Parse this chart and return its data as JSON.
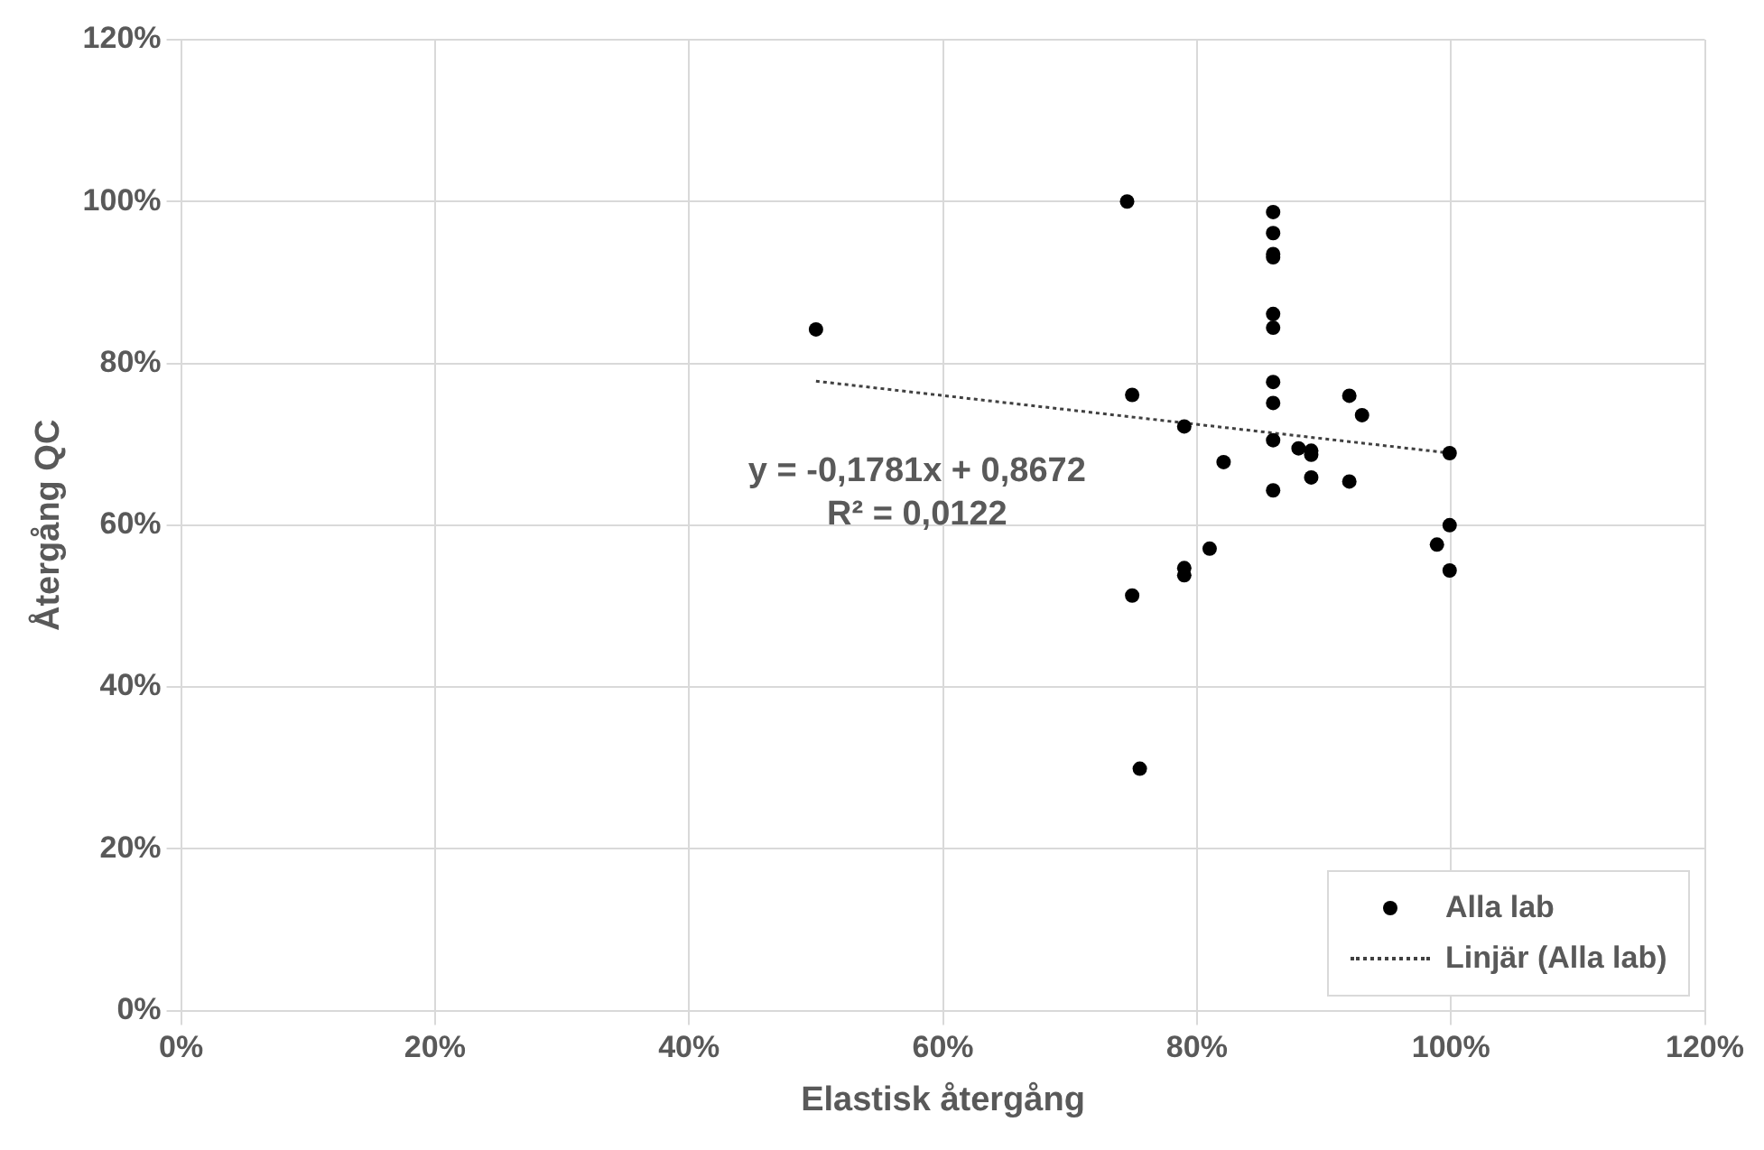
{
  "chart_data": {
    "type": "scatter",
    "xlabel": "Elastisk återgång",
    "ylabel": "Återgång QC",
    "xlim": [
      0,
      120
    ],
    "ylim": [
      0,
      120
    ],
    "xticks": [
      {
        "value": 0,
        "label": "0%"
      },
      {
        "value": 20,
        "label": "20%"
      },
      {
        "value": 40,
        "label": "40%"
      },
      {
        "value": 60,
        "label": "60%"
      },
      {
        "value": 80,
        "label": "80%"
      },
      {
        "value": 100,
        "label": "100%"
      },
      {
        "value": 120,
        "label": "120%"
      }
    ],
    "yticks": [
      {
        "value": 0,
        "label": "0%"
      },
      {
        "value": 20,
        "label": "20%"
      },
      {
        "value": 40,
        "label": "40%"
      },
      {
        "value": 60,
        "label": "60%"
      },
      {
        "value": 80,
        "label": "80%"
      },
      {
        "value": 100,
        "label": "100%"
      },
      {
        "value": 120,
        "label": "120%"
      }
    ],
    "grid": true,
    "legend": "bottom right",
    "marker": "circle",
    "series": [
      {
        "name": "Alla lab",
        "type": "scatter",
        "color": "#000000",
        "x": [
          50,
          74.5,
          74.9,
          74.9,
          75.5,
          79,
          79,
          79,
          81,
          82.1,
          86,
          86,
          86,
          86,
          86,
          86,
          86,
          86,
          86,
          86,
          88,
          89,
          89,
          89,
          92,
          93,
          92,
          99.9,
          99.9,
          98.9,
          99.9
        ],
        "values": [
          84.2,
          100,
          76.1,
          51.3,
          29.9,
          72.2,
          54.7,
          53.8,
          57.1,
          67.8,
          98.7,
          96.1,
          93.5,
          93.1,
          86.1,
          84.4,
          77.7,
          75.1,
          70.5,
          64.3,
          69.5,
          69.2,
          68.7,
          65.9,
          76,
          73.6,
          65.4,
          68.9,
          60,
          57.6,
          54.4
        ]
      },
      {
        "name": "Linjär (Alla lab)",
        "type": "line",
        "line_style": "dotted",
        "marker": "none",
        "color": "#404040",
        "x": [
          50,
          100
        ],
        "values": [
          77.8,
          68.9
        ]
      }
    ],
    "annotations": [
      "y = -0,1781x + 0,8672",
      "R² = 0,0122"
    ]
  }
}
